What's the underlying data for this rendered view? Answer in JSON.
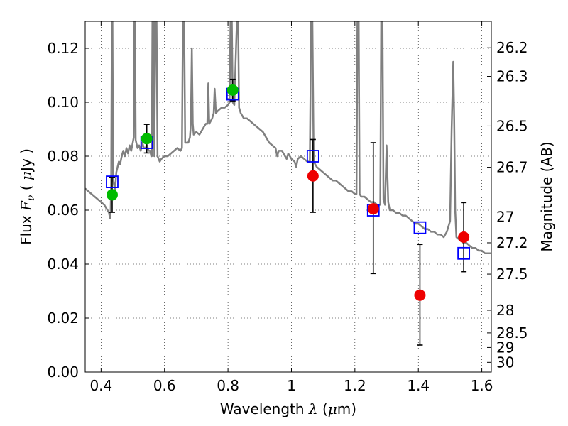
{
  "chart_data": {
    "type": "scatter",
    "xlabel": "Wavelength  λ (μm)",
    "ylabel": "Flux  Fν  ( μJy )",
    "y2label": "Magnitude (AB)",
    "xlim": [
      0.35,
      1.63
    ],
    "ylim": [
      0.0,
      0.13
    ],
    "grid": true,
    "x_ticks": [
      0.4,
      0.6,
      0.8,
      1.0,
      1.2,
      1.4,
      1.6
    ],
    "x_tick_labels": [
      "0.4",
      "0.6",
      "0.8",
      "1",
      "1.2",
      "1.4",
      "1.6"
    ],
    "y_ticks": [
      0.0,
      0.02,
      0.04,
      0.06,
      0.08,
      0.1,
      0.12
    ],
    "y_tick_labels": [
      "0.00",
      "0.02",
      "0.04",
      "0.06",
      "0.08",
      "0.10",
      "0.12"
    ],
    "y2_ticks": [
      {
        "label": "26.2",
        "flux": 0.1202
      },
      {
        "label": "26.3",
        "flux": 0.1096
      },
      {
        "label": "26.5",
        "flux": 0.0912
      },
      {
        "label": "26.7",
        "flux": 0.0759
      },
      {
        "label": "27",
        "flux": 0.0575
      },
      {
        "label": "27.2",
        "flux": 0.0479
      },
      {
        "label": "27.5",
        "flux": 0.0363
      },
      {
        "label": "28",
        "flux": 0.0229
      },
      {
        "label": "28.5",
        "flux": 0.0145
      },
      {
        "label": "29",
        "flux": 0.0091
      },
      {
        "label": "30",
        "flux": 0.0036
      }
    ],
    "series": [
      {
        "kind": "line",
        "color": "#808080",
        "points": [
          [
            0.35,
            0.068
          ],
          [
            0.37,
            0.066
          ],
          [
            0.39,
            0.064
          ],
          [
            0.41,
            0.062
          ],
          [
            0.42,
            0.06
          ],
          [
            0.425,
            0.059
          ],
          [
            0.428,
            0.057
          ],
          [
            0.43,
            0.059
          ],
          [
            0.432,
            0.07
          ],
          [
            0.434,
            0.13
          ],
          [
            0.436,
            0.13
          ],
          [
            0.438,
            0.072
          ],
          [
            0.44,
            0.07
          ],
          [
            0.444,
            0.067
          ],
          [
            0.448,
            0.074
          ],
          [
            0.452,
            0.076
          ],
          [
            0.456,
            0.078
          ],
          [
            0.46,
            0.077
          ],
          [
            0.465,
            0.08
          ],
          [
            0.47,
            0.082
          ],
          [
            0.475,
            0.08
          ],
          [
            0.48,
            0.083
          ],
          [
            0.485,
            0.081
          ],
          [
            0.49,
            0.084
          ],
          [
            0.495,
            0.082
          ],
          [
            0.5,
            0.085
          ],
          [
            0.503,
            0.087
          ],
          [
            0.505,
            0.13
          ],
          [
            0.507,
            0.13
          ],
          [
            0.509,
            0.086
          ],
          [
            0.515,
            0.083
          ],
          [
            0.52,
            0.084
          ],
          [
            0.525,
            0.082
          ],
          [
            0.53,
            0.085
          ],
          [
            0.535,
            0.083
          ],
          [
            0.54,
            0.083
          ],
          [
            0.545,
            0.084
          ],
          [
            0.55,
            0.082
          ],
          [
            0.555,
            0.082
          ],
          [
            0.558,
            0.08
          ],
          [
            0.56,
            0.08
          ],
          [
            0.562,
            0.13
          ],
          [
            0.566,
            0.13
          ],
          [
            0.568,
            0.08
          ],
          [
            0.571,
            0.13
          ],
          [
            0.575,
            0.13
          ],
          [
            0.578,
            0.08
          ],
          [
            0.585,
            0.078
          ],
          [
            0.59,
            0.079
          ],
          [
            0.6,
            0.08
          ],
          [
            0.61,
            0.08
          ],
          [
            0.62,
            0.081
          ],
          [
            0.63,
            0.082
          ],
          [
            0.64,
            0.083
          ],
          [
            0.65,
            0.082
          ],
          [
            0.655,
            0.083
          ],
          [
            0.658,
            0.13
          ],
          [
            0.662,
            0.13
          ],
          [
            0.665,
            0.085
          ],
          [
            0.675,
            0.085
          ],
          [
            0.68,
            0.087
          ],
          [
            0.683,
            0.092
          ],
          [
            0.686,
            0.12
          ],
          [
            0.689,
            0.092
          ],
          [
            0.692,
            0.088
          ],
          [
            0.7,
            0.089
          ],
          [
            0.71,
            0.088
          ],
          [
            0.72,
            0.09
          ],
          [
            0.73,
            0.092
          ],
          [
            0.735,
            0.092
          ],
          [
            0.738,
            0.107
          ],
          [
            0.741,
            0.092
          ],
          [
            0.75,
            0.094
          ],
          [
            0.755,
            0.096
          ],
          [
            0.758,
            0.105
          ],
          [
            0.762,
            0.096
          ],
          [
            0.77,
            0.097
          ],
          [
            0.78,
            0.098
          ],
          [
            0.79,
            0.098
          ],
          [
            0.8,
            0.099
          ],
          [
            0.805,
            0.1
          ],
          [
            0.808,
            0.13
          ],
          [
            0.812,
            0.13
          ],
          [
            0.815,
            0.1
          ],
          [
            0.82,
            0.099
          ],
          [
            0.828,
            0.13
          ],
          [
            0.832,
            0.13
          ],
          [
            0.835,
            0.098
          ],
          [
            0.84,
            0.096
          ],
          [
            0.85,
            0.094
          ],
          [
            0.86,
            0.094
          ],
          [
            0.87,
            0.093
          ],
          [
            0.88,
            0.092
          ],
          [
            0.89,
            0.091
          ],
          [
            0.9,
            0.09
          ],
          [
            0.91,
            0.089
          ],
          [
            0.92,
            0.087
          ],
          [
            0.93,
            0.085
          ],
          [
            0.94,
            0.084
          ],
          [
            0.95,
            0.083
          ],
          [
            0.955,
            0.08
          ],
          [
            0.96,
            0.082
          ],
          [
            0.97,
            0.082
          ],
          [
            0.98,
            0.08
          ],
          [
            0.985,
            0.079
          ],
          [
            0.99,
            0.081
          ],
          [
            1.0,
            0.079
          ],
          [
            1.01,
            0.078
          ],
          [
            1.015,
            0.076
          ],
          [
            1.02,
            0.079
          ],
          [
            1.03,
            0.08
          ],
          [
            1.04,
            0.079
          ],
          [
            1.05,
            0.078
          ],
          [
            1.058,
            0.078
          ],
          [
            1.062,
            0.13
          ],
          [
            1.066,
            0.13
          ],
          [
            1.07,
            0.078
          ],
          [
            1.08,
            0.076
          ],
          [
            1.09,
            0.075
          ],
          [
            1.1,
            0.074
          ],
          [
            1.11,
            0.073
          ],
          [
            1.12,
            0.072
          ],
          [
            1.13,
            0.071
          ],
          [
            1.14,
            0.071
          ],
          [
            1.15,
            0.07
          ],
          [
            1.16,
            0.069
          ],
          [
            1.17,
            0.068
          ],
          [
            1.18,
            0.067
          ],
          [
            1.19,
            0.067
          ],
          [
            1.2,
            0.066
          ],
          [
            1.205,
            0.066
          ],
          [
            1.208,
            0.13
          ],
          [
            1.212,
            0.13
          ],
          [
            1.215,
            0.066
          ],
          [
            1.22,
            0.065
          ],
          [
            1.23,
            0.065
          ],
          [
            1.24,
            0.064
          ],
          [
            1.25,
            0.063
          ],
          [
            1.26,
            0.063
          ],
          [
            1.27,
            0.062
          ],
          [
            1.28,
            0.062
          ],
          [
            1.283,
            0.13
          ],
          [
            1.287,
            0.13
          ],
          [
            1.29,
            0.064
          ],
          [
            1.295,
            0.062
          ],
          [
            1.3,
            0.084
          ],
          [
            1.305,
            0.063
          ],
          [
            1.31,
            0.06
          ],
          [
            1.32,
            0.06
          ],
          [
            1.33,
            0.059
          ],
          [
            1.34,
            0.059
          ],
          [
            1.35,
            0.058
          ],
          [
            1.36,
            0.058
          ],
          [
            1.37,
            0.057
          ],
          [
            1.38,
            0.056
          ],
          [
            1.39,
            0.055
          ],
          [
            1.4,
            0.055
          ],
          [
            1.41,
            0.054
          ],
          [
            1.42,
            0.053
          ],
          [
            1.43,
            0.053
          ],
          [
            1.44,
            0.052
          ],
          [
            1.45,
            0.052
          ],
          [
            1.46,
            0.051
          ],
          [
            1.47,
            0.051
          ],
          [
            1.48,
            0.05
          ],
          [
            1.49,
            0.052
          ],
          [
            1.5,
            0.056
          ],
          [
            1.505,
            0.09
          ],
          [
            1.51,
            0.115
          ],
          [
            1.513,
            0.094
          ],
          [
            1.516,
            0.06
          ],
          [
            1.52,
            0.05
          ],
          [
            1.53,
            0.049
          ],
          [
            1.54,
            0.048
          ],
          [
            1.55,
            0.048
          ],
          [
            1.56,
            0.047
          ],
          [
            1.57,
            0.046
          ],
          [
            1.58,
            0.046
          ],
          [
            1.59,
            0.045
          ],
          [
            1.6,
            0.045
          ],
          [
            1.61,
            0.044
          ],
          [
            1.63,
            0.044
          ]
        ]
      },
      {
        "kind": "square",
        "color": "#0000ff",
        "x": [
          0.435,
          0.544,
          0.815,
          1.068,
          1.258,
          1.405,
          1.543
        ],
        "y": [
          0.0705,
          0.085,
          0.103,
          0.08,
          0.06,
          0.0535,
          0.044
        ]
      },
      {
        "kind": "circle",
        "color": "#00bb00",
        "x": [
          0.435,
          0.544,
          0.815
        ],
        "y": [
          0.0657,
          0.0865,
          0.1045
        ],
        "err": [
          0.0065,
          0.0053,
          0.004
        ]
      },
      {
        "kind": "circle",
        "color": "#ee0000",
        "x": [
          1.068,
          1.258,
          1.405,
          1.543
        ],
        "y": [
          0.0727,
          0.0605,
          0.0285,
          0.05
        ],
        "err_low": [
          0.0135,
          0.024,
          0.0185,
          0.0128
        ],
        "err_high": [
          0.0135,
          0.0245,
          0.0188,
          0.0128
        ]
      }
    ]
  }
}
